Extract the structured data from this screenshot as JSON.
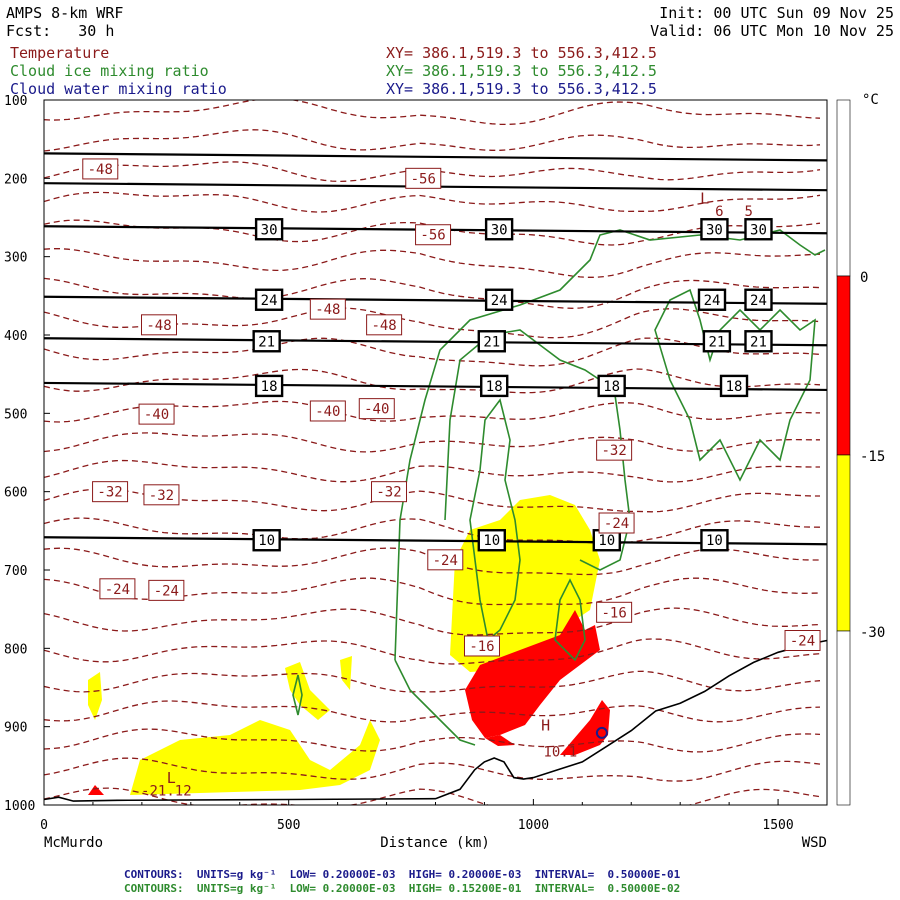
{
  "header": {
    "model": "AMPS 8-km WRF",
    "forecast": "Fcst:   30 h",
    "init": "Init: 00 UTC Sun 09 Nov 25",
    "valid": "Valid: 06 UTC Mon 10 Nov 25",
    "fields": [
      {
        "name": "Temperature",
        "xy": "XY= 386.1,519.3 to 556.3,412.5",
        "color": "#8b1a1a"
      },
      {
        "name": "Cloud ice mixing ratio",
        "xy": "XY= 386.1,519.3 to 556.3,412.5",
        "color": "#2e8b2e"
      },
      {
        "name": "Cloud water mixing ratio",
        "xy": "XY= 386.1,519.3 to 556.3,412.5",
        "color": "#1a1a8b"
      }
    ]
  },
  "chart_data": {
    "type": "heatmap",
    "xlabel": "Distance (km)",
    "x_start_label": "McMurdo",
    "x_end_label": "WSD",
    "xlim": [
      0,
      1600
    ],
    "ylim": [
      1000,
      100
    ],
    "x_ticks": [
      0,
      500,
      1000,
      1500
    ],
    "y_ticks": [
      100,
      200,
      300,
      400,
      500,
      600,
      700,
      800,
      900,
      1000
    ],
    "colorbar": {
      "unit": "°C",
      "ticks": [
        "0",
        "-15",
        "-30"
      ],
      "bands": [
        {
          "from": 0,
          "to": -15,
          "color": "#ff0000"
        },
        {
          "from": -15,
          "to": -30,
          "color": "#ffff00"
        }
      ]
    },
    "black_contour_levels": [
      {
        "label": "30",
        "pressure": 265,
        "label_x": [
          460,
          930,
          1370,
          1460
        ]
      },
      {
        "label": "24",
        "pressure": 355,
        "label_x": [
          460,
          930,
          1365,
          1460
        ]
      },
      {
        "label": "21",
        "pressure": 408,
        "label_x": [
          455,
          915,
          1375,
          1460
        ]
      },
      {
        "label": "18",
        "pressure": 465,
        "label_x": [
          460,
          920,
          1160,
          1410
        ]
      },
      {
        "label": "10",
        "pressure": 662,
        "label_x": [
          455,
          915,
          1150,
          1370
        ]
      }
    ],
    "black_contour_lines_only": [
      172,
      210
    ],
    "temperature_labels": [
      {
        "text": "-48",
        "x": 115,
        "p": 188
      },
      {
        "text": "-56",
        "x": 775,
        "p": 200
      },
      {
        "text": "-56",
        "x": 795,
        "p": 272
      },
      {
        "text": "-48",
        "x": 235,
        "p": 387
      },
      {
        "text": "-48",
        "x": 580,
        "p": 367
      },
      {
        "text": "-48",
        "x": 695,
        "p": 387
      },
      {
        "text": "-40",
        "x": 230,
        "p": 501
      },
      {
        "text": "-40",
        "x": 580,
        "p": 497
      },
      {
        "text": "-40",
        "x": 680,
        "p": 494
      },
      {
        "text": "-32",
        "x": 1165,
        "p": 547
      },
      {
        "text": "-32",
        "x": 135,
        "p": 600
      },
      {
        "text": "-32",
        "x": 240,
        "p": 604
      },
      {
        "text": "-32",
        "x": 705,
        "p": 600
      },
      {
        "text": "-24",
        "x": 1170,
        "p": 640
      },
      {
        "text": "-24",
        "x": 820,
        "p": 687
      },
      {
        "text": "-24",
        "x": 150,
        "p": 724
      },
      {
        "text": "-24",
        "x": 250,
        "p": 726
      },
      {
        "text": "-16",
        "x": 1165,
        "p": 754
      },
      {
        "text": "-16",
        "x": 895,
        "p": 797
      },
      {
        "text": "-24",
        "x": 1550,
        "p": 790
      }
    ],
    "markers": [
      {
        "text": "L",
        "x": 1350,
        "p": 232
      },
      {
        "text": "L",
        "x": 260,
        "p": 972
      },
      {
        "text": "H",
        "x": 1025,
        "p": 905
      }
    ],
    "point_values": [
      {
        "text": "-21.12",
        "x": 250,
        "p": 988
      },
      {
        "text": "10.1",
        "x": 1055,
        "p": 938
      },
      {
        "text": "6",
        "x": 1380,
        "p": 248
      },
      {
        "text": "5",
        "x": 1440,
        "p": 248
      }
    ],
    "terrain_profile": [
      [
        0,
        993
      ],
      [
        30,
        990
      ],
      [
        60,
        995
      ],
      [
        150,
        994
      ],
      [
        500,
        993
      ],
      [
        800,
        992
      ],
      [
        850,
        980
      ],
      [
        880,
        955
      ],
      [
        900,
        945
      ],
      [
        920,
        940
      ],
      [
        940,
        945
      ],
      [
        960,
        965
      ],
      [
        980,
        967
      ],
      [
        1000,
        965
      ],
      [
        1050,
        955
      ],
      [
        1100,
        945
      ],
      [
        1150,
        925
      ],
      [
        1200,
        905
      ],
      [
        1250,
        880
      ],
      [
        1300,
        870
      ],
      [
        1350,
        855
      ],
      [
        1400,
        835
      ],
      [
        1450,
        818
      ],
      [
        1500,
        805
      ],
      [
        1560,
        795
      ],
      [
        1600,
        790
      ]
    ]
  },
  "footer": {
    "line1": "CONTOURS:  UNITS=g kg⁻¹  LOW= 0.20000E-03  HIGH= 0.20000E-03  INTERVAL=  0.50000E-01",
    "line2": "CONTOURS:  UNITS=g kg⁻¹  LOW= 0.20000E-03  HIGH= 0.15200E-01  INTERVAL=  0.50000E-02"
  }
}
